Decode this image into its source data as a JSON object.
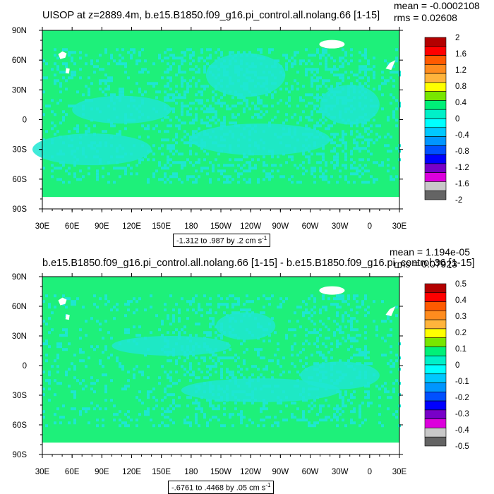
{
  "palette": {
    "ocean": "#1ef07a",
    "cyan_light": "#1ee6d2",
    "cyan": "#00f5f5",
    "land_gap": "#ffffff",
    "frame": "#000000"
  },
  "chart_data": [
    {
      "type": "heatmap",
      "title": "UISOP at z=2889.4m, b.e15.B1850.f09_g16.pi_control.all.nolang.66 [1-15]",
      "stats": {
        "mean": "mean = -0.0002108",
        "rms": "rms = 0.02608"
      },
      "range_label": "-1.312 to .987 by .2 cm s",
      "range_unit_exp": "-1",
      "xticks": [
        "30E",
        "60E",
        "90E",
        "120E",
        "150E",
        "180",
        "150W",
        "120W",
        "90W",
        "60W",
        "30W",
        "0",
        "30E"
      ],
      "yticks": [
        "90N",
        "60N",
        "30N",
        "0",
        "30S",
        "60S",
        "90S"
      ],
      "lon_range": [
        30,
        390
      ],
      "lat_range": [
        -90,
        90
      ],
      "legend_labels": [
        "2",
        "1.6",
        "1.2",
        "0.8",
        "0.4",
        "0",
        "-0.4",
        "-0.8",
        "-1.2",
        "-1.6",
        "-2"
      ],
      "legend_colors": [
        "#b30000",
        "#ff0000",
        "#ff5a00",
        "#ff8c1e",
        "#ffb43c",
        "#ffff00",
        "#78e600",
        "#00f078",
        "#00f0c8",
        "#00ffff",
        "#00c8ff",
        "#0096ff",
        "#0050ff",
        "#0000ff",
        "#7800c8",
        "#dc00dc",
        "#c8c8c8",
        "#646464"
      ]
    },
    {
      "type": "heatmap",
      "title": "b.e15.B1850.f09_g16.pi_control.all.nolang.66 [1-15] - b.e15.B1850.f09_g16.pi_control.36 [1-15]",
      "stats": {
        "mean": "mean = 1.194e-05",
        "rms": "rms = 0.07923"
      },
      "range_label": "-.6761 to .4468 by .05 cm s",
      "range_unit_exp": "-1",
      "xticks": [
        "30E",
        "60E",
        "90E",
        "120E",
        "150E",
        "180",
        "150W",
        "120W",
        "90W",
        "60W",
        "30W",
        "0",
        "30E"
      ],
      "yticks": [
        "90N",
        "60N",
        "30N",
        "0",
        "30S",
        "60S",
        "90S"
      ],
      "lon_range": [
        30,
        390
      ],
      "lat_range": [
        -90,
        90
      ],
      "legend_labels": [
        "0.5",
        "0.4",
        "0.3",
        "0.2",
        "0.1",
        "0",
        "-0.1",
        "-0.2",
        "-0.3",
        "-0.4",
        "-0.5"
      ],
      "legend_colors": [
        "#b30000",
        "#ff0000",
        "#ff5a00",
        "#ff8c1e",
        "#ffb43c",
        "#ffff00",
        "#78e600",
        "#00f078",
        "#00f0c8",
        "#00ffff",
        "#00c8ff",
        "#0096ff",
        "#0050ff",
        "#0000ff",
        "#7800c8",
        "#dc00dc",
        "#c8c8c8",
        "#646464"
      ]
    }
  ]
}
